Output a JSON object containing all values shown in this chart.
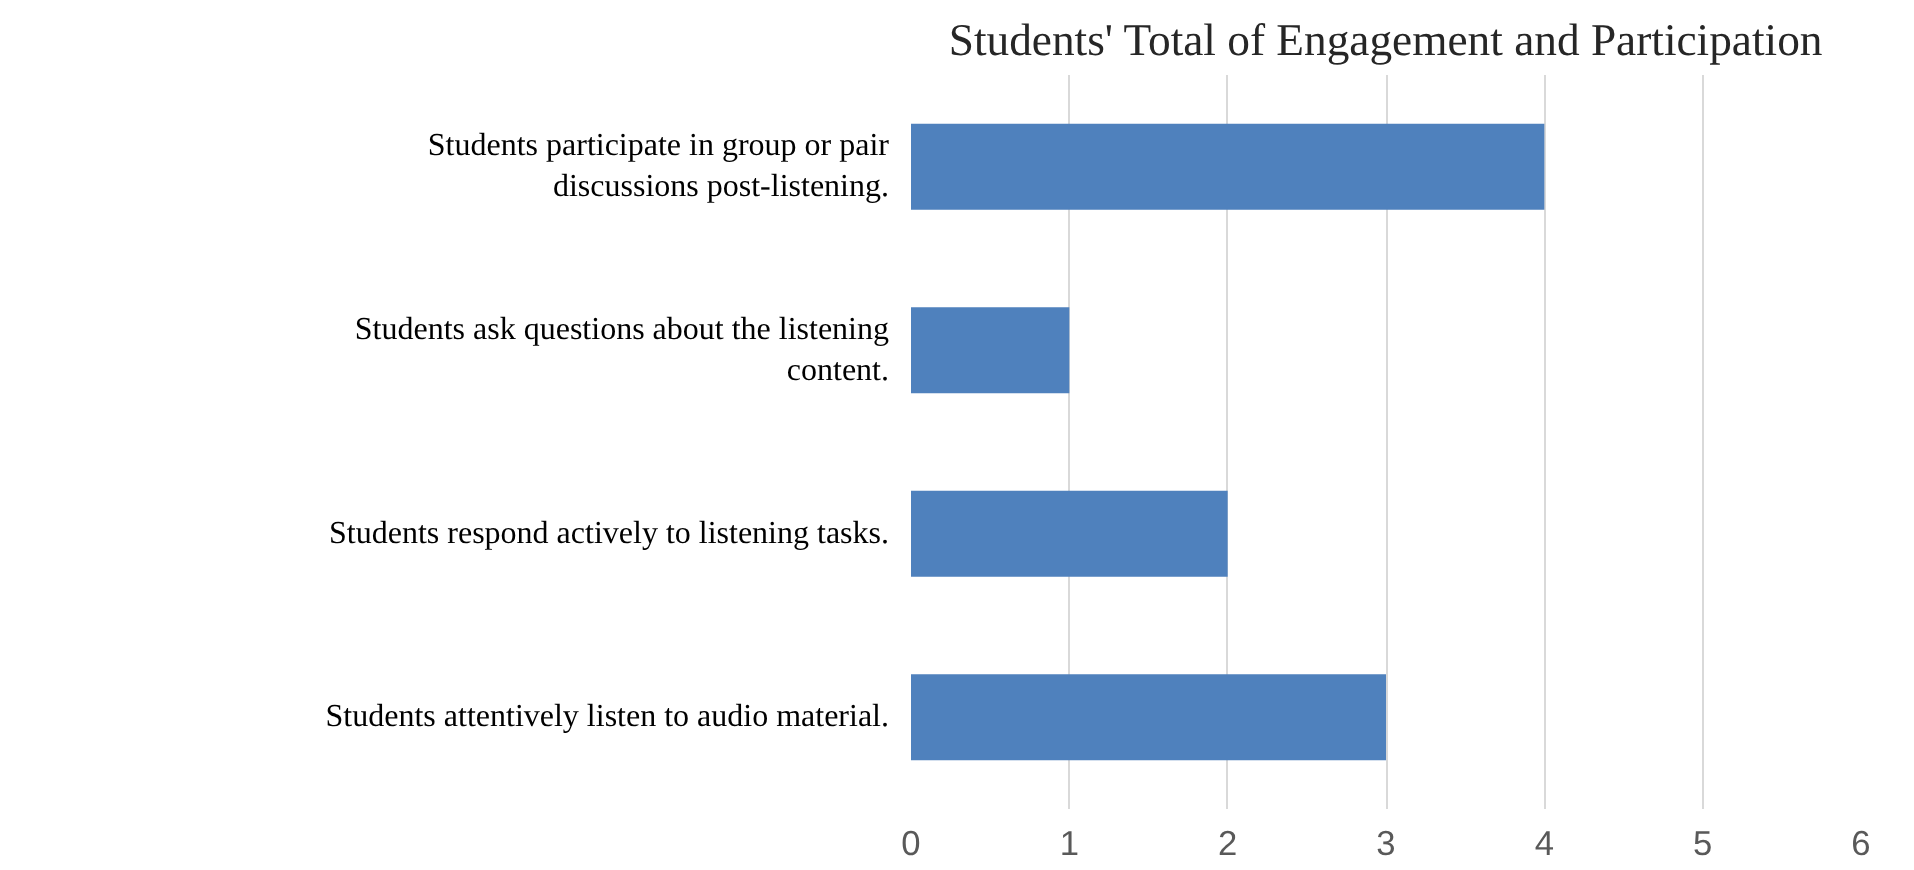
{
  "chart_data": {
    "type": "bar",
    "orientation": "horizontal",
    "title": "Students' Total of Engagement and Participation",
    "categories": [
      "Students participate in group or pair\ndiscussions post-listening.",
      "Students ask questions about the listening\ncontent.",
      "Students respond actively to listening tasks.",
      "Students attentively listen to audio material."
    ],
    "values": [
      4,
      1,
      2,
      3
    ],
    "color": "#4f81bd",
    "xlim": [
      0,
      6
    ],
    "xticks": [
      0,
      1,
      2,
      3,
      4,
      5,
      6
    ],
    "grid": "x"
  }
}
